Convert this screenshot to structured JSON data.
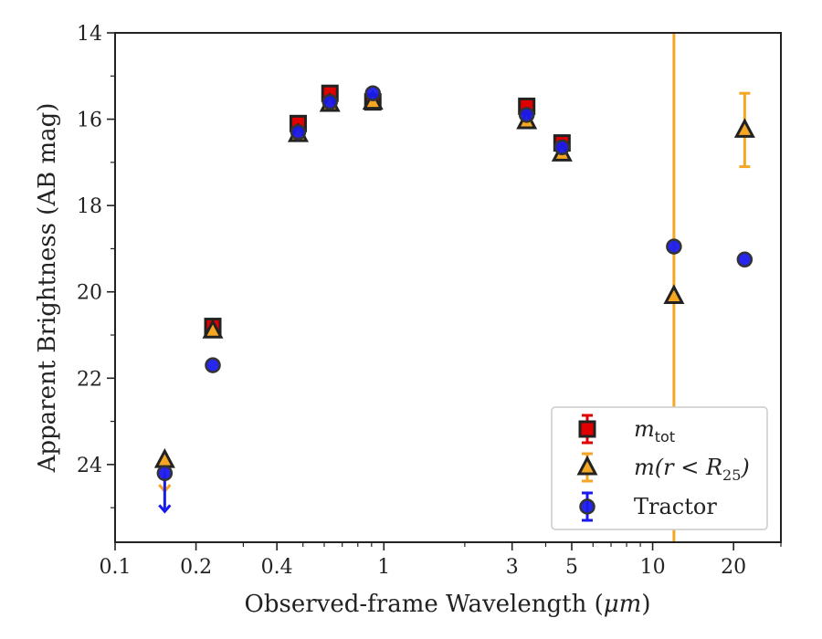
{
  "chart_data": {
    "type": "scatter",
    "title": "",
    "xlabel_main": "Observed-frame Wavelength (",
    "xlabel_unit": "μm",
    "xlabel_close": ")",
    "ylabel": "Apparent Brightness (AB mag)",
    "x_scale": "log",
    "y_inverted": true,
    "xlim": [
      0.1,
      30
    ],
    "ylim": [
      25.8,
      14
    ],
    "x_ticks": [
      {
        "value": 0.1,
        "label": "0.1"
      },
      {
        "value": 0.2,
        "label": "0.2"
      },
      {
        "value": 0.4,
        "label": "0.4"
      },
      {
        "value": 1,
        "label": "1"
      },
      {
        "value": 3,
        "label": "3"
      },
      {
        "value": 5,
        "label": "5"
      },
      {
        "value": 10,
        "label": "10"
      },
      {
        "value": 20,
        "label": "20"
      }
    ],
    "y_ticks": [
      {
        "value": 14,
        "label": "14"
      },
      {
        "value": 16,
        "label": "16"
      },
      {
        "value": 18,
        "label": "18"
      },
      {
        "value": 20,
        "label": "20"
      },
      {
        "value": 22,
        "label": "22"
      },
      {
        "value": 24,
        "label": "24"
      }
    ],
    "grid": false,
    "legend_position": "lower-right",
    "series": [
      {
        "name": "m_tot",
        "legend_label": "m",
        "legend_sub": "tot",
        "marker": "square",
        "fill": "#e00000",
        "edge": "#222222",
        "errcolor": "#e00000",
        "points": [
          {
            "x": 0.231,
            "y": 20.8
          },
          {
            "x": 0.48,
            "y": 16.1
          },
          {
            "x": 0.63,
            "y": 15.4
          },
          {
            "x": 0.91,
            "y": 15.6
          },
          {
            "x": 3.4,
            "y": 15.7
          },
          {
            "x": 4.6,
            "y": 16.55
          }
        ]
      },
      {
        "name": "m(r < R_25)",
        "legend_label": "m(r < R",
        "legend_sub": "25",
        "legend_close": ")",
        "marker": "triangle",
        "fill": "#f5a623",
        "edge": "#222222",
        "errcolor": "#f5a623",
        "points": [
          {
            "x": 0.153,
            "y": 23.9,
            "upper_limit": true
          },
          {
            "x": 0.231,
            "y": 20.9
          },
          {
            "x": 0.48,
            "y": 16.35
          },
          {
            "x": 0.63,
            "y": 15.65
          },
          {
            "x": 0.91,
            "y": 15.6
          },
          {
            "x": 3.4,
            "y": 16.05
          },
          {
            "x": 4.6,
            "y": 16.8
          },
          {
            "x": 12,
            "y": 20.1,
            "yerr_full_axis": true
          },
          {
            "x": 22,
            "y": 16.25,
            "yerr": 0.85
          }
        ]
      },
      {
        "name": "Tractor",
        "legend_label": "Tractor",
        "marker": "circle",
        "fill": "#1a1aee",
        "edge": "#333333",
        "errcolor": "#1a1aee",
        "points": [
          {
            "x": 0.153,
            "y": 24.2,
            "upper_limit": true
          },
          {
            "x": 0.231,
            "y": 21.7
          },
          {
            "x": 0.48,
            "y": 16.3
          },
          {
            "x": 0.63,
            "y": 15.6
          },
          {
            "x": 0.91,
            "y": 15.4
          },
          {
            "x": 3.4,
            "y": 15.9
          },
          {
            "x": 4.6,
            "y": 16.65
          },
          {
            "x": 12,
            "y": 18.95
          },
          {
            "x": 22,
            "y": 19.25
          }
        ]
      }
    ]
  }
}
